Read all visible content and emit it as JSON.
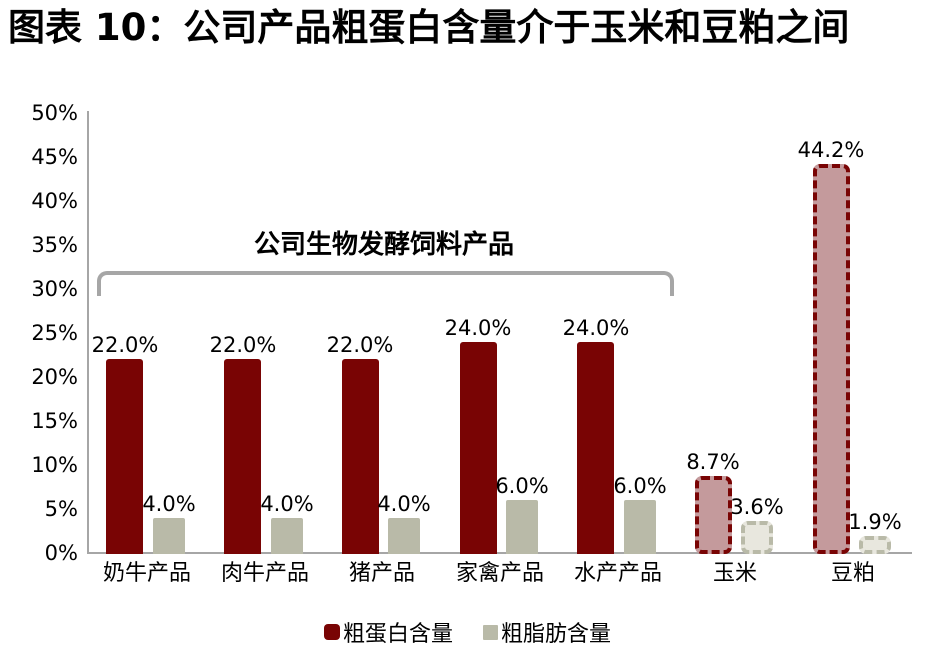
{
  "title": "图表 10：公司产品粗蛋白含量介于玉米和豆粕之间",
  "colors": {
    "protein": "#790404",
    "protein_dashed_fill": "#C49A9C",
    "fat": "#B9BAA8",
    "fat_dashed_fill": "#E8E7DE",
    "axis": "#A6A6A6",
    "bracket": "#A6A6A6",
    "text": "#000000"
  },
  "chart_data": {
    "type": "bar",
    "title": "图表 10：公司产品粗蛋白含量介于玉米和豆粕之间",
    "categories": [
      "奶牛产品",
      "肉牛产品",
      "猪产品",
      "家禽产品",
      "水产产品",
      "玉米",
      "豆粕"
    ],
    "series": [
      {
        "name": "粗蛋白含量",
        "color": "#790404",
        "dashed_fill": "#C49A9C",
        "values": [
          22.0,
          22.0,
          22.0,
          24.0,
          24.0,
          8.7,
          44.2
        ],
        "labels": [
          "22.0%",
          "22.0%",
          "22.0%",
          "24.0%",
          "24.0%",
          "8.7%",
          "44.2%"
        ]
      },
      {
        "name": "粗脂肪含量",
        "color": "#B9BAA8",
        "dashed_fill": "#E8E7DE",
        "values": [
          4.0,
          4.0,
          4.0,
          6.0,
          6.0,
          3.6,
          1.9
        ],
        "labels": [
          "4.0%",
          "4.0%",
          "4.0%",
          "6.0%",
          "6.0%",
          "3.6%",
          "1.9%"
        ]
      }
    ],
    "dashed_categories": [
      "玉米",
      "豆粕"
    ],
    "annotation": "公司生物发酵饲料产品",
    "annotation_covers": [
      "奶牛产品",
      "肉牛产品",
      "猪产品",
      "家禽产品",
      "水产产品"
    ],
    "xlabel": "",
    "ylabel": "",
    "ylim": [
      0,
      50
    ],
    "yticks": [
      "50%",
      "45%",
      "40%",
      "35%",
      "30%",
      "25%",
      "20%",
      "15%",
      "10%",
      "5%",
      "0%"
    ],
    "grid": false,
    "legend_position": "bottom"
  }
}
